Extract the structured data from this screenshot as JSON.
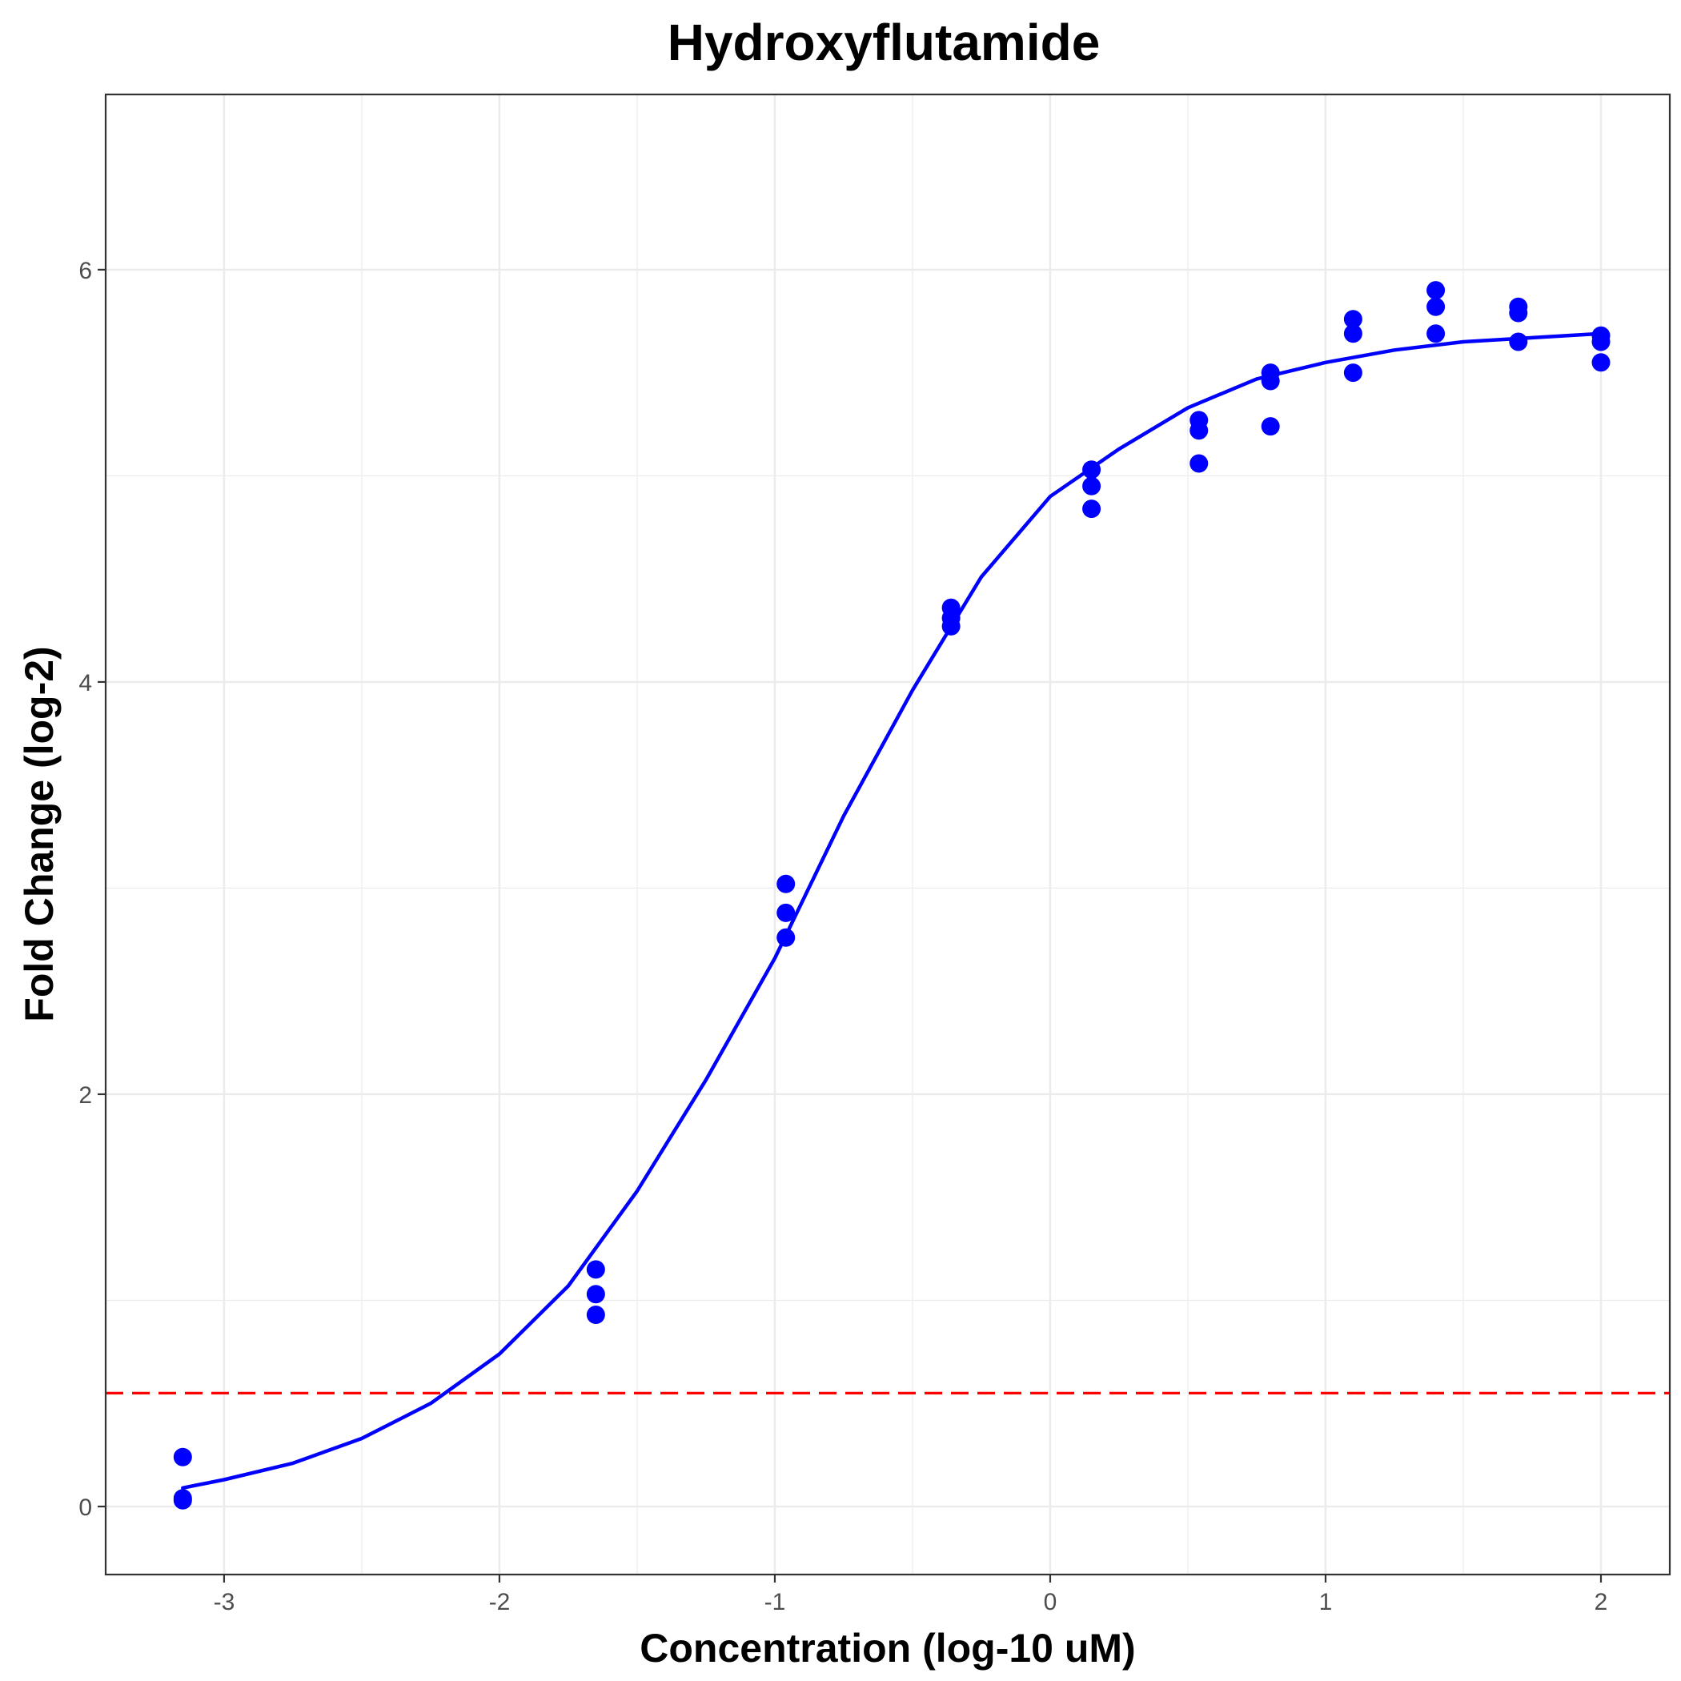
{
  "chart_data": {
    "type": "scatter",
    "title": "Hydroxyflutamide",
    "xlabel": "Concentration (log-10 uM)",
    "ylabel": "Fold Change (log-2)",
    "xlim": [
      -3.43,
      2.25
    ],
    "ylim": [
      -0.33,
      6.85
    ],
    "x_ticks": [
      -3,
      -2,
      -1,
      0,
      1,
      2
    ],
    "x_tick_labels": [
      "-3",
      "-2",
      "-1",
      "0",
      "1",
      "2"
    ],
    "y_ticks": [
      0,
      2,
      4,
      6
    ],
    "y_tick_labels": [
      "0",
      "2",
      "4",
      "6"
    ],
    "x_minor_grid": [
      -2.5,
      -1.5,
      -0.5,
      0.5,
      1.5
    ],
    "y_minor_grid": [
      1,
      3,
      5
    ],
    "grid": true,
    "legend": "none",
    "colors": {
      "points": "#0000ff",
      "fit_line": "#0000ff",
      "threshold": "#ff0000",
      "grid": "#ebebeb",
      "panel_border": "#333333"
    },
    "points": {
      "x": [
        -3.15,
        -3.15,
        -3.15,
        -1.65,
        -1.65,
        -1.65,
        -0.96,
        -0.96,
        -0.96,
        -0.36,
        -0.36,
        -0.36,
        0.15,
        0.15,
        0.15,
        0.54,
        0.54,
        0.54,
        0.8,
        0.8,
        0.8,
        1.1,
        1.1,
        1.1,
        1.4,
        1.4,
        1.4,
        1.7,
        1.7,
        1.7,
        2.0,
        2.0,
        2.0
      ],
      "y": [
        0.24,
        0.04,
        0.03,
        1.15,
        1.03,
        0.93,
        3.02,
        2.88,
        2.76,
        4.36,
        4.31,
        4.27,
        5.03,
        4.95,
        4.84,
        5.27,
        5.22,
        5.06,
        5.5,
        5.46,
        5.24,
        5.76,
        5.69,
        5.5,
        5.9,
        5.82,
        5.69,
        5.82,
        5.79,
        5.65,
        5.68,
        5.65,
        5.55
      ]
    },
    "fit_curve": {
      "x": [
        -3.15,
        -3.0,
        -2.75,
        -2.5,
        -2.25,
        -2.0,
        -1.75,
        -1.5,
        -1.25,
        -1.0,
        -0.75,
        -0.5,
        -0.25,
        0.0,
        0.25,
        0.5,
        0.75,
        1.0,
        1.25,
        1.5,
        1.75,
        2.0
      ],
      "y": [
        0.09,
        0.13,
        0.21,
        0.33,
        0.5,
        0.74,
        1.07,
        1.53,
        2.07,
        2.66,
        3.35,
        3.96,
        4.51,
        4.9,
        5.13,
        5.33,
        5.47,
        5.55,
        5.61,
        5.65,
        5.67,
        5.69
      ]
    },
    "threshold_y": 0.55
  }
}
